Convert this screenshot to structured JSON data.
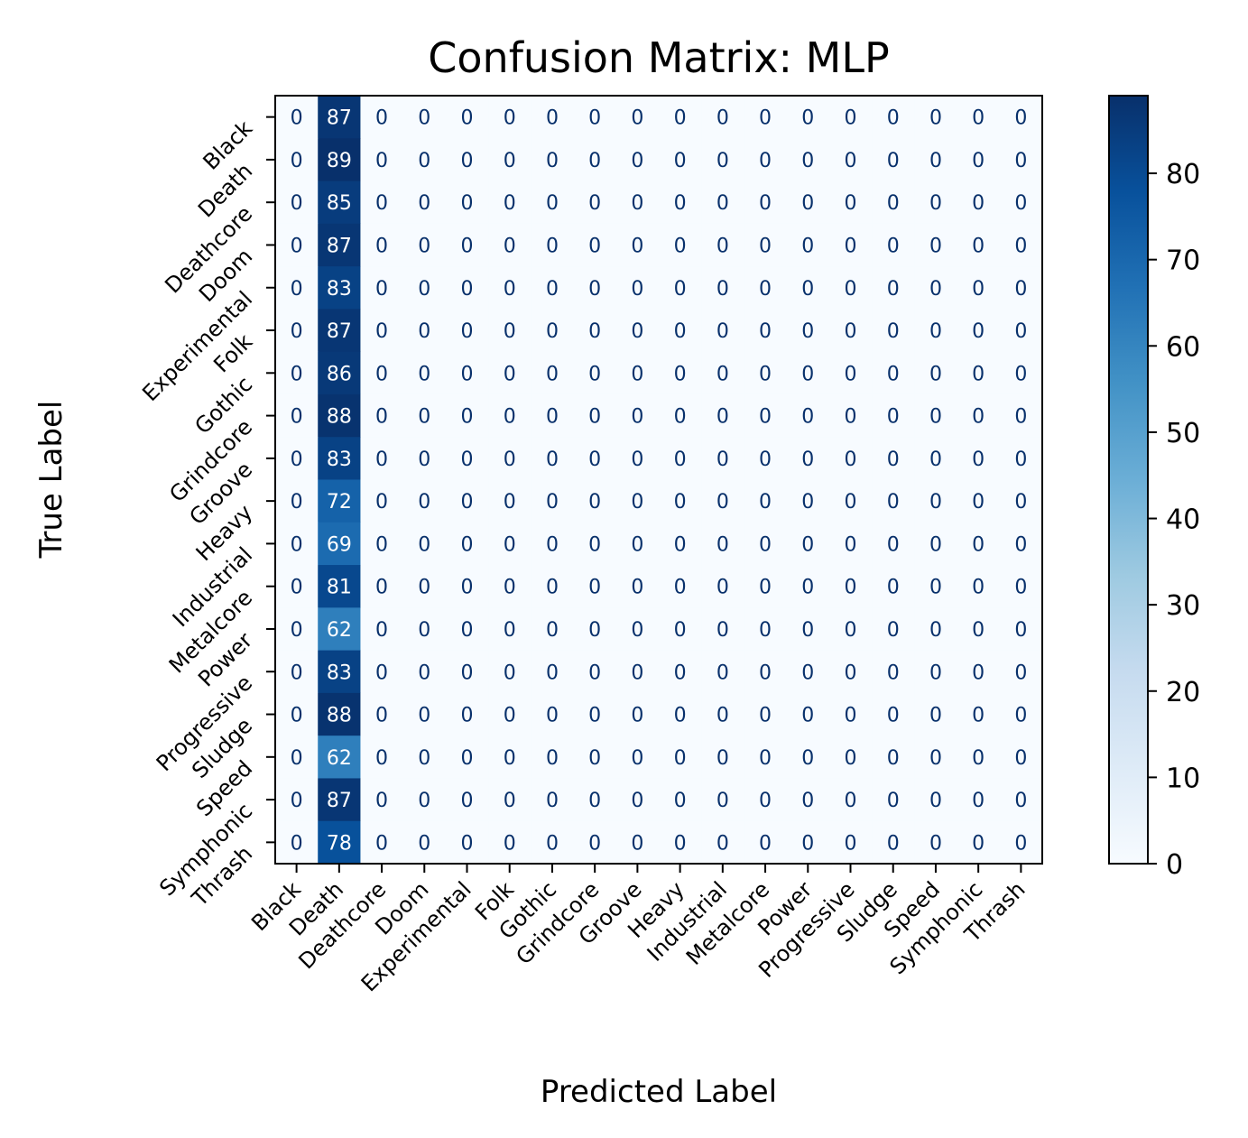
{
  "chart_data": {
    "type": "heatmap",
    "title": "Confusion Matrix: MLP",
    "xlabel": "Predicted Label",
    "ylabel": "True Label",
    "categories": [
      "Black",
      "Death",
      "Deathcore",
      "Doom",
      "Experimental",
      "Folk",
      "Gothic",
      "Grindcore",
      "Groove",
      "Heavy",
      "Industrial",
      "Metalcore",
      "Power",
      "Progressive",
      "Sludge",
      "Speed",
      "Symphonic",
      "Thrash"
    ],
    "death_column_values": [
      87,
      89,
      85,
      87,
      83,
      87,
      86,
      88,
      83,
      72,
      69,
      81,
      62,
      83,
      88,
      62,
      87,
      78
    ],
    "matrix": [
      [
        0,
        87,
        0,
        0,
        0,
        0,
        0,
        0,
        0,
        0,
        0,
        0,
        0,
        0,
        0,
        0,
        0,
        0
      ],
      [
        0,
        89,
        0,
        0,
        0,
        0,
        0,
        0,
        0,
        0,
        0,
        0,
        0,
        0,
        0,
        0,
        0,
        0
      ],
      [
        0,
        85,
        0,
        0,
        0,
        0,
        0,
        0,
        0,
        0,
        0,
        0,
        0,
        0,
        0,
        0,
        0,
        0
      ],
      [
        0,
        87,
        0,
        0,
        0,
        0,
        0,
        0,
        0,
        0,
        0,
        0,
        0,
        0,
        0,
        0,
        0,
        0
      ],
      [
        0,
        83,
        0,
        0,
        0,
        0,
        0,
        0,
        0,
        0,
        0,
        0,
        0,
        0,
        0,
        0,
        0,
        0
      ],
      [
        0,
        87,
        0,
        0,
        0,
        0,
        0,
        0,
        0,
        0,
        0,
        0,
        0,
        0,
        0,
        0,
        0,
        0
      ],
      [
        0,
        86,
        0,
        0,
        0,
        0,
        0,
        0,
        0,
        0,
        0,
        0,
        0,
        0,
        0,
        0,
        0,
        0
      ],
      [
        0,
        88,
        0,
        0,
        0,
        0,
        0,
        0,
        0,
        0,
        0,
        0,
        0,
        0,
        0,
        0,
        0,
        0
      ],
      [
        0,
        83,
        0,
        0,
        0,
        0,
        0,
        0,
        0,
        0,
        0,
        0,
        0,
        0,
        0,
        0,
        0,
        0
      ],
      [
        0,
        72,
        0,
        0,
        0,
        0,
        0,
        0,
        0,
        0,
        0,
        0,
        0,
        0,
        0,
        0,
        0,
        0
      ],
      [
        0,
        69,
        0,
        0,
        0,
        0,
        0,
        0,
        0,
        0,
        0,
        0,
        0,
        0,
        0,
        0,
        0,
        0
      ],
      [
        0,
        81,
        0,
        0,
        0,
        0,
        0,
        0,
        0,
        0,
        0,
        0,
        0,
        0,
        0,
        0,
        0,
        0
      ],
      [
        0,
        62,
        0,
        0,
        0,
        0,
        0,
        0,
        0,
        0,
        0,
        0,
        0,
        0,
        0,
        0,
        0,
        0
      ],
      [
        0,
        83,
        0,
        0,
        0,
        0,
        0,
        0,
        0,
        0,
        0,
        0,
        0,
        0,
        0,
        0,
        0,
        0
      ],
      [
        0,
        88,
        0,
        0,
        0,
        0,
        0,
        0,
        0,
        0,
        0,
        0,
        0,
        0,
        0,
        0,
        0,
        0
      ],
      [
        0,
        62,
        0,
        0,
        0,
        0,
        0,
        0,
        0,
        0,
        0,
        0,
        0,
        0,
        0,
        0,
        0,
        0
      ],
      [
        0,
        87,
        0,
        0,
        0,
        0,
        0,
        0,
        0,
        0,
        0,
        0,
        0,
        0,
        0,
        0,
        0,
        0
      ],
      [
        0,
        78,
        0,
        0,
        0,
        0,
        0,
        0,
        0,
        0,
        0,
        0,
        0,
        0,
        0,
        0,
        0,
        0
      ]
    ],
    "colormap": "Blues",
    "colorbar_ticks": [
      0,
      10,
      20,
      30,
      40,
      50,
      60,
      70,
      80
    ],
    "colorbar_range": [
      0,
      89
    ],
    "grid": false
  }
}
